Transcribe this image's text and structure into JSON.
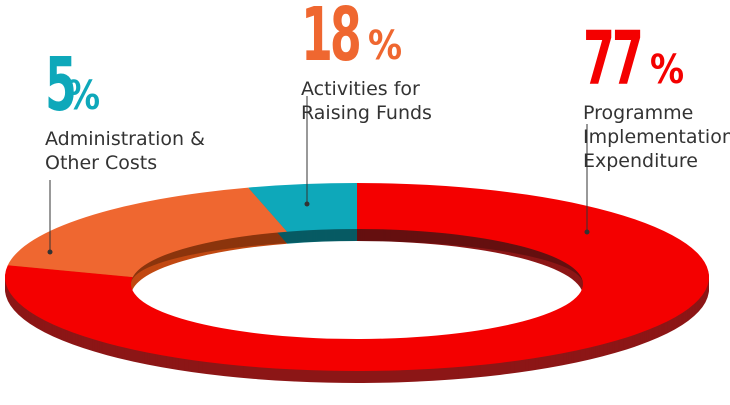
{
  "chart_data": {
    "type": "pie",
    "variant": "donut-3d",
    "title": "",
    "slices": [
      {
        "label_lines": [
          "Programme",
          "Implementation",
          "Expenditure"
        ],
        "value": 77,
        "value_label": "77",
        "unit": "%",
        "color": "#f40000",
        "side_color": "#8c1616"
      },
      {
        "label_lines": [
          "Activities for",
          "Raising Funds"
        ],
        "value": 18,
        "value_label": "18",
        "unit": "%",
        "color": "#ef6730",
        "side_color": "#c14912"
      },
      {
        "label_lines": [
          "Administration &",
          "Other Costs"
        ],
        "value": 5,
        "value_label": "5",
        "unit": "%",
        "color": "#0ea8ba",
        "side_color": "#0a7d8a"
      }
    ],
    "legend": "callouts"
  }
}
